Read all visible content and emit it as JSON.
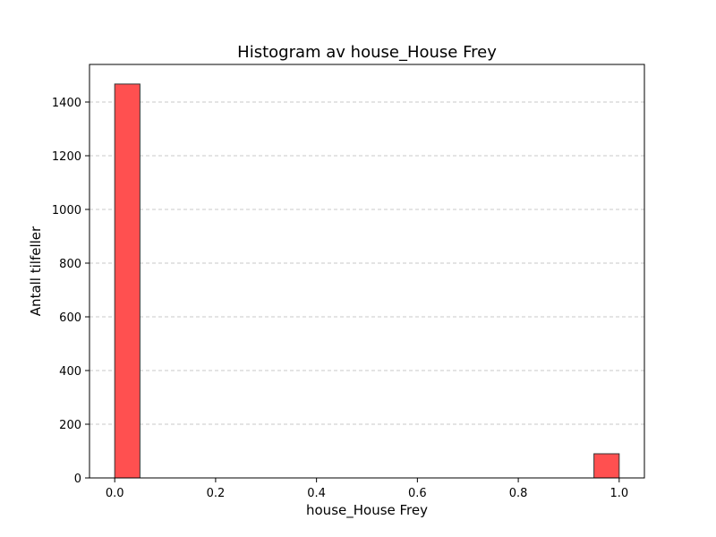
{
  "chart_data": {
    "type": "bar",
    "title": "Histogram av house_House Frey",
    "xlabel": "house_House Frey",
    "ylabel": "Antall tilfeller",
    "xlim": [
      -0.05,
      1.05
    ],
    "ylim": [
      0,
      1540
    ],
    "x_ticks": [
      "0.0",
      "0.2",
      "0.4",
      "0.6",
      "0.8",
      "1.0"
    ],
    "x_tick_values": [
      0,
      0.2,
      0.4,
      0.6,
      0.8,
      1.0
    ],
    "y_ticks": [
      "0",
      "200",
      "400",
      "600",
      "800",
      "1000",
      "1200",
      "1400"
    ],
    "y_tick_values": [
      0,
      200,
      400,
      600,
      800,
      1000,
      1200,
      1400
    ],
    "grid": "y-dashed",
    "bin_width": 0.05,
    "bins": [
      {
        "start": 0.0,
        "end": 0.05,
        "value": 1467
      },
      {
        "start": 0.95,
        "end": 1.0,
        "value": 90
      }
    ],
    "colors": {
      "bar_fill": "#ff5050",
      "bar_edge": "#333333",
      "grid": "#c8c8c8"
    }
  }
}
